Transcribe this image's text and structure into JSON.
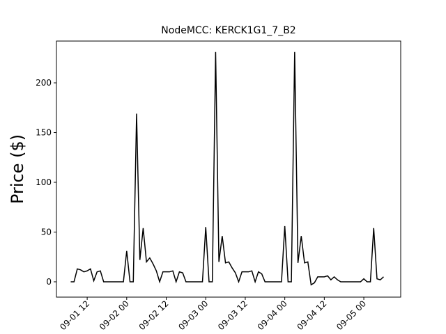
{
  "chart_data": {
    "type": "line",
    "title": "NodeMCC: KERCK1G1_7_B2",
    "y_label": "Price ($)",
    "x": [
      "09-01 07",
      "09-01 08",
      "09-01 09",
      "09-01 10",
      "09-01 11",
      "09-01 12",
      "09-01 13",
      "09-01 14",
      "09-01 15",
      "09-01 16",
      "09-01 17",
      "09-01 18",
      "09-01 19",
      "09-01 20",
      "09-01 21",
      "09-01 22",
      "09-01 23",
      "09-02 00",
      "09-02 01",
      "09-02 02",
      "09-02 03",
      "09-02 04",
      "09-02 05",
      "09-02 06",
      "09-02 07",
      "09-02 08",
      "09-02 09",
      "09-02 10",
      "09-02 11",
      "09-02 12",
      "09-02 13",
      "09-02 14",
      "09-02 15",
      "09-02 16",
      "09-02 17",
      "09-02 18",
      "09-02 19",
      "09-02 20",
      "09-02 21",
      "09-02 22",
      "09-02 23",
      "09-03 00",
      "09-03 01",
      "09-03 02",
      "09-03 03",
      "09-03 04",
      "09-03 05",
      "09-03 06",
      "09-03 07",
      "09-03 08",
      "09-03 09",
      "09-03 10",
      "09-03 11",
      "09-03 12",
      "09-03 13",
      "09-03 14",
      "09-03 15",
      "09-03 16",
      "09-03 17",
      "09-03 18",
      "09-03 19",
      "09-03 20",
      "09-03 21",
      "09-03 22",
      "09-03 23",
      "09-04 00",
      "09-04 01",
      "09-04 02",
      "09-04 03",
      "09-04 04",
      "09-04 05",
      "09-04 06",
      "09-04 07",
      "09-04 08",
      "09-04 09",
      "09-04 10",
      "09-04 11",
      "09-04 12",
      "09-04 13",
      "09-04 14",
      "09-04 15",
      "09-04 16",
      "09-04 17",
      "09-04 18",
      "09-04 19",
      "09-04 20",
      "09-04 21",
      "09-04 22",
      "09-04 23",
      "09-05 00",
      "09-05 01",
      "09-05 02",
      "09-05 03",
      "09-05 04",
      "09-05 05",
      "09-05 06"
    ],
    "series": [
      {
        "color": "#000000",
        "values": [
          0,
          0,
          13,
          12,
          10,
          11,
          13,
          1,
          10,
          11,
          0,
          0,
          0,
          0,
          0,
          0,
          0,
          31,
          0,
          0,
          169,
          22,
          54,
          20,
          24,
          18,
          11,
          0,
          10,
          10,
          10,
          11,
          0,
          10,
          9,
          0,
          0,
          0,
          0,
          0,
          0,
          55,
          0,
          0,
          231,
          20,
          46,
          19,
          20,
          14,
          9,
          0,
          10,
          10,
          10,
          11,
          0,
          10,
          8,
          0,
          0,
          0,
          0,
          0,
          0,
          56,
          0,
          0,
          231,
          19,
          46,
          19,
          20,
          -3,
          -1,
          5,
          5,
          5,
          6,
          2,
          5,
          2,
          0,
          0,
          0,
          0,
          0,
          0,
          0,
          3,
          0,
          0,
          54,
          3,
          2,
          5
        ]
      }
    ],
    "xlim": [
      "09-01 02:40",
      "09-05 11:12"
    ],
    "xticks": [
      "09-01 12",
      "09-02 00",
      "09-02 12",
      "09-03 00",
      "09-03 12",
      "09-04 00",
      "09-04 12",
      "09-05 00"
    ],
    "ylim": [
      -15.4,
      242
    ],
    "yticks": [
      0,
      50,
      100,
      150,
      200
    ]
  }
}
